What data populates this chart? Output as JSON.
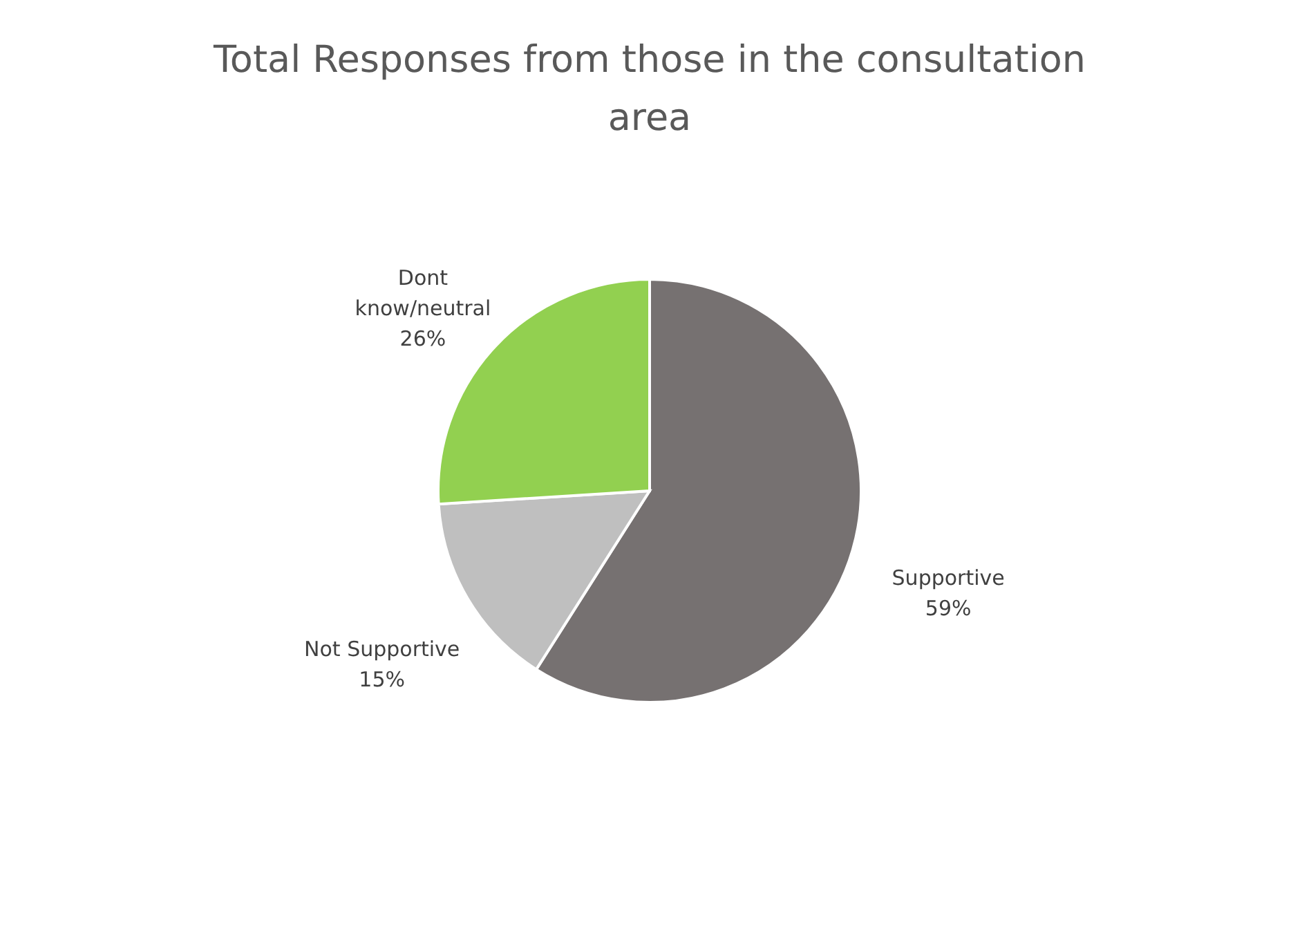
{
  "chart_data": {
    "type": "pie",
    "title": "Total Responses from those in the consultation area",
    "categories": [
      "Supportive",
      "Not Supportive",
      "Dont know/neutral"
    ],
    "values": [
      59,
      15,
      26
    ],
    "colors": [
      "#767171",
      "#bfbfbf",
      "#92d050"
    ],
    "value_labels": [
      "59%",
      "15%",
      "26%"
    ],
    "legend": false
  }
}
